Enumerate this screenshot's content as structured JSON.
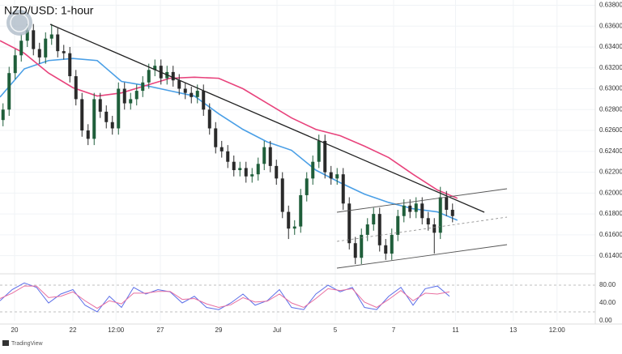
{
  "chart_data": [
    {
      "type": "candlestick",
      "title": "NZD/USD: 1-hour",
      "open": [
        0.627,
        0.628,
        0.6315,
        0.6332,
        0.6346,
        0.6356,
        0.6338,
        0.633,
        0.6348,
        0.6352,
        0.6336,
        0.6334,
        0.6312,
        0.629,
        0.626,
        0.6252,
        0.629,
        0.6278,
        0.6268,
        0.6262,
        0.63,
        0.6286,
        0.629,
        0.6298,
        0.6306,
        0.6318,
        0.6322,
        0.631,
        0.6316,
        0.6308,
        0.63,
        0.6296,
        0.6292,
        0.6298,
        0.628,
        0.6262,
        0.6244,
        0.624,
        0.623,
        0.6222,
        0.6224,
        0.6216,
        0.6218,
        0.6228,
        0.6244,
        0.6226,
        0.6214,
        0.6182,
        0.6166,
        0.6168,
        0.6198,
        0.6214,
        0.623,
        0.625,
        0.622,
        0.6214,
        0.6218,
        0.619,
        0.6152,
        0.6138,
        0.616,
        0.617,
        0.618,
        0.615,
        0.6142,
        0.616,
        0.6178,
        0.6188,
        0.6182,
        0.619,
        0.6176,
        0.617,
        0.6162,
        0.6196,
        0.6184
      ],
      "high": [
        0.6286,
        0.6321,
        0.6338,
        0.6352,
        0.6362,
        0.6362,
        0.6344,
        0.6354,
        0.6362,
        0.6358,
        0.6342,
        0.634,
        0.6318,
        0.6296,
        0.6266,
        0.6296,
        0.6296,
        0.6284,
        0.6274,
        0.6306,
        0.6306,
        0.6296,
        0.6304,
        0.6312,
        0.6324,
        0.6328,
        0.6328,
        0.6322,
        0.6322,
        0.6314,
        0.6306,
        0.6302,
        0.6304,
        0.6304,
        0.6286,
        0.6268,
        0.625,
        0.6246,
        0.6236,
        0.623,
        0.623,
        0.6224,
        0.6234,
        0.625,
        0.625,
        0.6232,
        0.622,
        0.6188,
        0.6174,
        0.6204,
        0.622,
        0.6236,
        0.6256,
        0.6256,
        0.6226,
        0.6224,
        0.6224,
        0.6196,
        0.6158,
        0.6166,
        0.6176,
        0.6186,
        0.6186,
        0.6156,
        0.6166,
        0.6184,
        0.6194,
        0.6194,
        0.6196,
        0.6196,
        0.6182,
        0.6176,
        0.6206,
        0.6202,
        0.619
      ],
      "low": [
        0.6264,
        0.6274,
        0.6309,
        0.6326,
        0.634,
        0.6332,
        0.6324,
        0.6324,
        0.6342,
        0.633,
        0.6328,
        0.6306,
        0.6284,
        0.6254,
        0.6246,
        0.6246,
        0.6272,
        0.6262,
        0.6256,
        0.6256,
        0.628,
        0.628,
        0.6284,
        0.6292,
        0.63,
        0.6312,
        0.6304,
        0.6304,
        0.6302,
        0.6294,
        0.629,
        0.6286,
        0.6286,
        0.6274,
        0.6256,
        0.6238,
        0.6234,
        0.6224,
        0.6216,
        0.6216,
        0.621,
        0.621,
        0.6212,
        0.6222,
        0.622,
        0.6208,
        0.6176,
        0.6156,
        0.616,
        0.6162,
        0.6192,
        0.6208,
        0.6224,
        0.6214,
        0.6208,
        0.6208,
        0.6184,
        0.6146,
        0.6132,
        0.6132,
        0.6154,
        0.6164,
        0.6144,
        0.6136,
        0.6136,
        0.6154,
        0.6172,
        0.6176,
        0.6176,
        0.617,
        0.6164,
        0.6142,
        0.6156,
        0.6178,
        0.6172
      ],
      "close": [
        0.628,
        0.6315,
        0.6332,
        0.6346,
        0.6356,
        0.6338,
        0.633,
        0.6348,
        0.6352,
        0.6336,
        0.6334,
        0.6312,
        0.629,
        0.626,
        0.6252,
        0.629,
        0.6278,
        0.6268,
        0.6262,
        0.63,
        0.6286,
        0.629,
        0.6298,
        0.6306,
        0.6318,
        0.6322,
        0.631,
        0.6316,
        0.6308,
        0.63,
        0.6296,
        0.6292,
        0.6298,
        0.628,
        0.6262,
        0.6244,
        0.624,
        0.623,
        0.6222,
        0.6224,
        0.6216,
        0.6218,
        0.6228,
        0.6244,
        0.6226,
        0.6214,
        0.6182,
        0.6166,
        0.6168,
        0.6198,
        0.6214,
        0.623,
        0.625,
        0.622,
        0.6214,
        0.6218,
        0.619,
        0.6152,
        0.6138,
        0.616,
        0.617,
        0.618,
        0.615,
        0.6142,
        0.616,
        0.6178,
        0.6188,
        0.6182,
        0.619,
        0.6176,
        0.617,
        0.6162,
        0.6196,
        0.6184,
        0.6178
      ],
      "up_color": "#1f5e3a",
      "down_color": "#2a2a2a",
      "series": [
        {
          "color": "#4a9fe6",
          "x": [
            0,
            4,
            8,
            12,
            16,
            20,
            24,
            28,
            32,
            36,
            40,
            44,
            48,
            52,
            56,
            60,
            64,
            68,
            72,
            75.3
          ],
          "values": [
            0.6292,
            0.6319,
            0.6327,
            0.6329,
            0.6327,
            0.6307,
            0.6303,
            0.6298,
            0.6293,
            0.6276,
            0.6261,
            0.6249,
            0.6241,
            0.6222,
            0.621,
            0.6199,
            0.6191,
            0.6185,
            0.6182,
            0.6174
          ]
        },
        {
          "color": "#e8437c",
          "x": [
            0,
            4,
            8,
            12,
            16,
            20,
            24,
            28,
            32,
            36,
            40,
            44,
            48,
            52,
            56,
            60,
            64,
            68,
            72,
            75.3
          ],
          "values": [
            0.6346,
            0.6334,
            0.6315,
            0.6301,
            0.6293,
            0.6296,
            0.6303,
            0.631,
            0.6311,
            0.631,
            0.63,
            0.6286,
            0.6272,
            0.6261,
            0.6255,
            0.6245,
            0.6234,
            0.6218,
            0.6203,
            0.6195
          ]
        }
      ],
      "xlim": [
        0,
        98
      ],
      "xticks": [
        {
          "value": 2.4,
          "label": "20"
        },
        {
          "value": 12,
          "label": "22"
        },
        {
          "value": 19.1,
          "label": "12:00"
        },
        {
          "value": 26.4,
          "label": "27"
        },
        {
          "value": 36,
          "label": "29"
        },
        {
          "value": 45.6,
          "label": "Jul"
        },
        {
          "value": 55.2,
          "label": "5"
        },
        {
          "value": 64.8,
          "label": "7"
        },
        {
          "value": 75,
          "label": "11"
        },
        {
          "value": 84.5,
          "label": "13"
        },
        {
          "value": 91.7,
          "label": "12:00"
        }
      ],
      "ylim": [
        0.6125,
        0.6385
      ],
      "yticks": [
        {
          "value": 0.614,
          "label": "0.61400"
        },
        {
          "value": 0.616,
          "label": "0.61600"
        },
        {
          "value": 0.618,
          "label": "0.61800"
        },
        {
          "value": 0.62,
          "label": "0.62000"
        },
        {
          "value": 0.622,
          "label": "0.62200"
        },
        {
          "value": 0.624,
          "label": "0.62400"
        },
        {
          "value": 0.626,
          "label": "0.62600"
        },
        {
          "value": 0.628,
          "label": "0.62800"
        },
        {
          "value": 0.63,
          "label": "0.63000"
        },
        {
          "value": 0.632,
          "label": "0.63200"
        },
        {
          "value": 0.634,
          "label": "0.63400"
        },
        {
          "value": 0.636,
          "label": "0.63600"
        },
        {
          "value": 0.638,
          "label": "0.63800"
        }
      ],
      "grid": true
    },
    {
      "type": "line",
      "x": [
        0,
        2,
        4,
        6,
        8,
        10,
        12,
        14,
        16,
        18,
        20,
        22,
        24,
        26,
        28,
        30,
        32,
        34,
        36,
        38,
        40,
        42,
        44,
        46,
        48,
        50,
        52,
        54,
        56,
        58,
        60,
        62,
        64,
        66,
        68,
        70,
        72,
        74
      ],
      "series": [
        {
          "color": "#5b6ee8",
          "values": [
            45,
            70,
            85,
            75,
            40,
            60,
            70,
            35,
            20,
            55,
            30,
            75,
            60,
            70,
            65,
            40,
            55,
            30,
            25,
            40,
            60,
            35,
            45,
            70,
            30,
            25,
            60,
            80,
            65,
            75,
            30,
            25,
            55,
            75,
            35,
            72,
            78,
            55
          ]
        },
        {
          "color": "#e86fa0",
          "values": [
            50,
            62,
            78,
            78,
            52,
            55,
            65,
            45,
            28,
            45,
            38,
            62,
            62,
            66,
            66,
            48,
            50,
            38,
            30,
            36,
            52,
            42,
            44,
            60,
            40,
            30,
            50,
            72,
            68,
            72,
            42,
            30,
            48,
            68,
            45,
            62,
            60,
            65
          ]
        }
      ],
      "xlim": [
        0,
        98
      ],
      "ylim": [
        0,
        100
      ],
      "yticks": [
        {
          "value": 0,
          "label": "0.00"
        },
        {
          "value": 40,
          "label": "40.00"
        },
        {
          "value": 80,
          "label": "80.00"
        }
      ],
      "levels": [
        20,
        80
      ]
    }
  ],
  "footer": "TradingView"
}
